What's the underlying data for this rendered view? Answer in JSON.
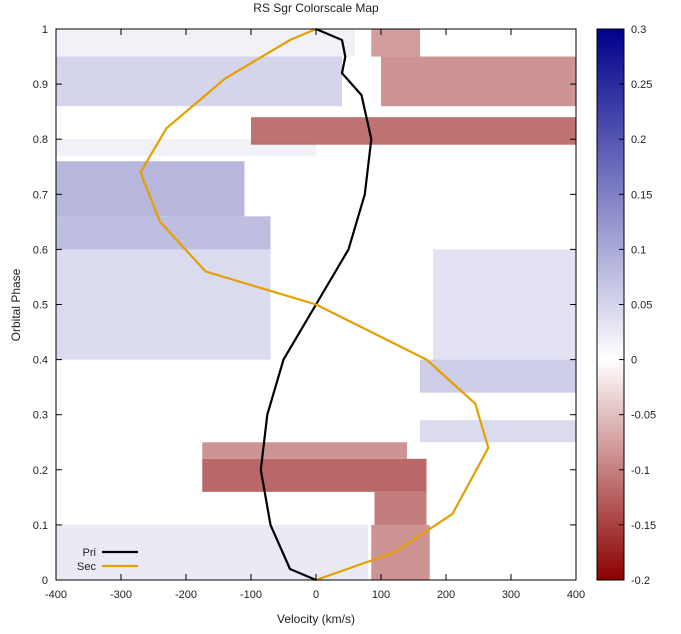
{
  "chart_data": {
    "type": "heatmap",
    "title": "RS Sgr Colorscale Map",
    "xlabel": "Velocity (km/s)",
    "ylabel": "Orbital Phase",
    "xlim": [
      -400,
      400
    ],
    "ylim": [
      0,
      1
    ],
    "x_ticks": [
      -400,
      -300,
      -200,
      -100,
      0,
      100,
      200,
      300,
      400
    ],
    "y_ticks": [
      0,
      0.1,
      0.2,
      0.3,
      0.4,
      0.5,
      0.6,
      0.7,
      0.8,
      0.9,
      1
    ],
    "colorbar": {
      "range": [
        -0.2,
        0.3
      ],
      "ticks": [
        -0.2,
        -0.15,
        -0.1,
        -0.05,
        0,
        0.05,
        0.1,
        0.15,
        0.2,
        0.25,
        0.3
      ],
      "low_color": "#8b0000",
      "zero_color": "#ffffff",
      "high_color": "#00008b"
    },
    "heatmap_blocks": [
      {
        "phase": [
          0.0,
          0.1
        ],
        "x": [
          -400,
          80
        ],
        "value": 0.03
      },
      {
        "phase": [
          0.0,
          0.1
        ],
        "x": [
          85,
          175
        ],
        "value": -0.1
      },
      {
        "phase": [
          0.1,
          0.16
        ],
        "x": [
          90,
          170
        ],
        "value": -0.12
      },
      {
        "phase": [
          0.16,
          0.22
        ],
        "x": [
          -175,
          170
        ],
        "value": -0.14
      },
      {
        "phase": [
          0.22,
          0.25
        ],
        "x": [
          -175,
          140
        ],
        "value": -0.1
      },
      {
        "phase": [
          0.25,
          0.29
        ],
        "x": [
          160,
          400
        ],
        "value": 0.05
      },
      {
        "phase": [
          0.34,
          0.4
        ],
        "x": [
          160,
          400
        ],
        "value": 0.07
      },
      {
        "phase": [
          0.4,
          0.6
        ],
        "x": [
          -400,
          -70
        ],
        "value": 0.05
      },
      {
        "phase": [
          0.4,
          0.6
        ],
        "x": [
          180,
          400
        ],
        "value": 0.04
      },
      {
        "phase": [
          0.6,
          0.66
        ],
        "x": [
          -400,
          -70
        ],
        "value": 0.09
      },
      {
        "phase": [
          0.66,
          0.76
        ],
        "x": [
          -400,
          -110
        ],
        "value": 0.1
      },
      {
        "phase": [
          0.77,
          0.8
        ],
        "x": [
          -400,
          0
        ],
        "value": 0.02
      },
      {
        "phase": [
          0.79,
          0.84
        ],
        "x": [
          -100,
          400
        ],
        "value": -0.13
      },
      {
        "phase": [
          0.86,
          0.95
        ],
        "x": [
          -400,
          40
        ],
        "value": 0.06
      },
      {
        "phase": [
          0.86,
          0.95
        ],
        "x": [
          100,
          400
        ],
        "value": -0.1
      },
      {
        "phase": [
          0.95,
          1.0
        ],
        "x": [
          -400,
          60
        ],
        "value": 0.02
      },
      {
        "phase": [
          0.95,
          1.0
        ],
        "x": [
          85,
          160
        ],
        "value": -0.09
      }
    ],
    "series": [
      {
        "name": "Pri",
        "color": "#000000",
        "x": [
          0,
          -40,
          -70,
          -85,
          -75,
          -50,
          0,
          50,
          75,
          85,
          70,
          40,
          45,
          40,
          0
        ],
        "y": [
          0,
          0.02,
          0.1,
          0.2,
          0.3,
          0.4,
          0.5,
          0.6,
          0.7,
          0.8,
          0.88,
          0.92,
          0.95,
          0.98,
          1.0
        ]
      },
      {
        "name": "Sec",
        "color": "#e69f00",
        "x": [
          0,
          120,
          210,
          265,
          245,
          170,
          0,
          -170,
          -240,
          -270,
          -230,
          -140,
          -40,
          0
        ],
        "y": [
          0,
          0.05,
          0.12,
          0.24,
          0.32,
          0.4,
          0.5,
          0.56,
          0.65,
          0.74,
          0.82,
          0.91,
          0.98,
          1.0
        ]
      }
    ],
    "legend": {
      "placement": "bottom-left",
      "entries": [
        "Pri",
        "Sec"
      ]
    }
  }
}
